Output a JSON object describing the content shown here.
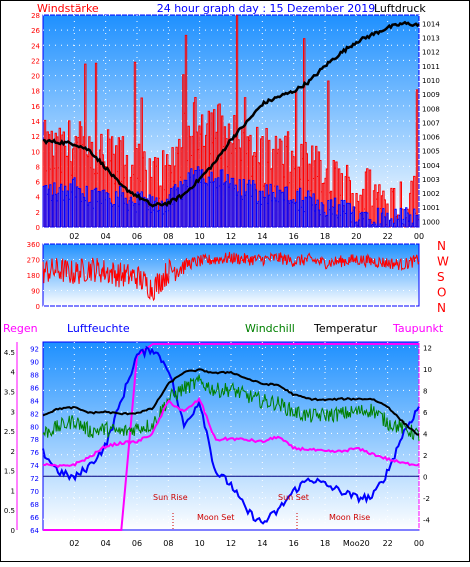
{
  "header": {
    "left_label": "Windstärke",
    "center_title": "24 hour graph day : 15 Dezember 2019",
    "right_label": "Luftdruck"
  },
  "colors": {
    "wind": "#ff0000",
    "gust_base": "#0000ff",
    "pressure": "#000000",
    "humidity": "#0000ff",
    "windchill": "#008000",
    "temperature": "#000000",
    "dewpoint": "#ff00ff",
    "frame": "#0000ff",
    "sky_top": "#1e90ff",
    "sky_bottom": "#ffffff"
  },
  "wind_panel": {
    "left_ticks": [
      "0",
      "2",
      "4",
      "6",
      "8",
      "10",
      "12",
      "14",
      "16",
      "18",
      "20",
      "22",
      "24",
      "26",
      "28"
    ],
    "right_ticks": [
      "1000",
      "1001",
      "1002",
      "1003",
      "1004",
      "1005",
      "1006",
      "1007",
      "1008",
      "1009",
      "1010",
      "1011",
      "1012",
      "1013",
      "1014"
    ]
  },
  "direction_panel": {
    "ticks": [
      "0",
      "90",
      "180",
      "270",
      "360"
    ],
    "compass": [
      "N",
      "W",
      "S",
      "O",
      "N"
    ]
  },
  "bottom_panel": {
    "labels": {
      "regen": "Regen",
      "luftfeuchte": "Luftfeuchte",
      "windchill": "Windchill",
      "temperatur": "Temperatur",
      "taupunkt": "Taupunkt"
    },
    "regen_ticks": [
      "0",
      "0.5",
      "1",
      "1.5",
      "2",
      "2.5",
      "3",
      "3.5",
      "4",
      "4.5"
    ],
    "humidity_ticks": [
      "64",
      "66",
      "68",
      "70",
      "72",
      "74",
      "76",
      "78",
      "80",
      "82",
      "84",
      "86",
      "88",
      "90",
      "92"
    ],
    "temp_ticks": [
      "-4",
      "-2",
      "0",
      "2",
      "4",
      "6",
      "8",
      "10",
      "12"
    ],
    "annotations": {
      "sun_rise": "Sun Rise",
      "moon_set": "Moon Set",
      "sun_set": "Sun Set",
      "moon_rise": "Moon Rise"
    }
  },
  "time_axis": {
    "ticks": [
      "02",
      "04",
      "06",
      "08",
      "10",
      "12",
      "14",
      "16",
      "18",
      "20",
      "22",
      "00"
    ],
    "ticks_bottom": [
      "02",
      "04",
      "06",
      "08",
      "10",
      "12",
      "14",
      "16",
      "18",
      "Moo20",
      "22",
      "00"
    ]
  },
  "chart_data": [
    {
      "type": "line",
      "name": "wind-pressure",
      "x_hours": [
        0,
        1,
        2,
        3,
        4,
        5,
        6,
        7,
        8,
        9,
        10,
        11,
        12,
        13,
        14,
        15,
        16,
        17,
        18,
        19,
        20,
        21,
        22,
        23,
        24
      ],
      "series": [
        {
          "name": "Windstärke",
          "axis": "left",
          "values": [
            9,
            8,
            10,
            7,
            8,
            7,
            6,
            5,
            6,
            10,
            13,
            12,
            10,
            9,
            8,
            8,
            7,
            6,
            5,
            4,
            3,
            3,
            2,
            2,
            2
          ]
        },
        {
          "name": "Luftdruck",
          "axis": "right",
          "values": [
            1005.7,
            1005.6,
            1005.5,
            1005.0,
            1003.8,
            1002.5,
            1001.8,
            1001.1,
            1001.3,
            1001.9,
            1003.0,
            1004.2,
            1005.8,
            1007.0,
            1008.3,
            1008.8,
            1009.2,
            1009.9,
            1011.0,
            1011.9,
            1012.7,
            1013.2,
            1013.7,
            1014.0,
            1013.9
          ]
        }
      ],
      "ylim_left": [
        0,
        28
      ],
      "ylim_right": [
        999.6,
        1014.6
      ]
    },
    {
      "type": "line",
      "name": "wind-direction",
      "x_hours": [
        0,
        1,
        2,
        3,
        4,
        5,
        6,
        7,
        8,
        9,
        10,
        11,
        12,
        13,
        14,
        15,
        16,
        17,
        18,
        19,
        20,
        21,
        22,
        23,
        24
      ],
      "series": [
        {
          "name": "direction",
          "values": [
            200,
            210,
            190,
            220,
            200,
            180,
            170,
            100,
            200,
            240,
            260,
            270,
            280,
            270,
            270,
            280,
            260,
            270,
            250,
            260,
            270,
            260,
            250,
            240,
            270
          ]
        }
      ],
      "ylim": [
        0,
        360
      ]
    },
    {
      "type": "line",
      "name": "temperature-humidity",
      "x_hours": [
        0,
        1,
        2,
        3,
        4,
        5,
        6,
        7,
        8,
        9,
        10,
        11,
        12,
        13,
        14,
        15,
        16,
        17,
        18,
        19,
        20,
        21,
        22,
        23,
        24
      ],
      "series": [
        {
          "name": "Temperatur",
          "axis": "temp",
          "values": [
            5.7,
            6.3,
            6.4,
            5.9,
            6.0,
            5.8,
            5.9,
            6.3,
            8.6,
            9.7,
            9.9,
            9.6,
            9.7,
            9.1,
            8.6,
            8.5,
            7.6,
            7.2,
            7.1,
            7.2,
            7.2,
            7.2,
            6.5,
            5.0,
            3.8
          ]
        },
        {
          "name": "Windchill",
          "axis": "temp",
          "values": [
            4.0,
            4.6,
            5.2,
            4.2,
            4.4,
            4.1,
            4.5,
            4.8,
            7.2,
            8.2,
            8.8,
            8.0,
            8.1,
            7.5,
            7.0,
            6.8,
            6.0,
            5.6,
            5.7,
            5.8,
            6.0,
            6.2,
            5.0,
            4.5,
            3.8
          ]
        },
        {
          "name": "Taupunkt",
          "axis": "temp",
          "values": [
            1.1,
            0.9,
            1.1,
            1.8,
            2.8,
            3.1,
            3.2,
            4.0,
            7.0,
            6.0,
            7.2,
            3.4,
            3.5,
            3.4,
            3.2,
            3.7,
            2.6,
            2.5,
            2.3,
            2.3,
            2.6,
            2.1,
            1.6,
            1.2,
            1.1
          ]
        },
        {
          "name": "Luftfeuchte",
          "axis": "humidity",
          "values": [
            76,
            73,
            72,
            74,
            77,
            84,
            91,
            92,
            89,
            80,
            84,
            73,
            71,
            67,
            65,
            67,
            70,
            72,
            71,
            70,
            69,
            69,
            73,
            79,
            83
          ]
        },
        {
          "name": "Regen",
          "axis": "regen",
          "values": [
            0,
            0,
            0,
            0,
            0,
            0,
            4.4,
            4.7,
            4.7,
            4.7,
            4.7,
            4.7,
            4.7,
            4.7,
            4.7,
            4.7,
            4.7,
            4.7,
            4.7,
            4.7,
            4.7,
            4.7,
            4.7,
            4.7,
            4.7
          ]
        }
      ],
      "ylim_regen": [
        0,
        4.75
      ],
      "ylim_humidity": [
        64,
        93
      ],
      "ylim_temp": [
        -5,
        12.5
      ]
    }
  ]
}
